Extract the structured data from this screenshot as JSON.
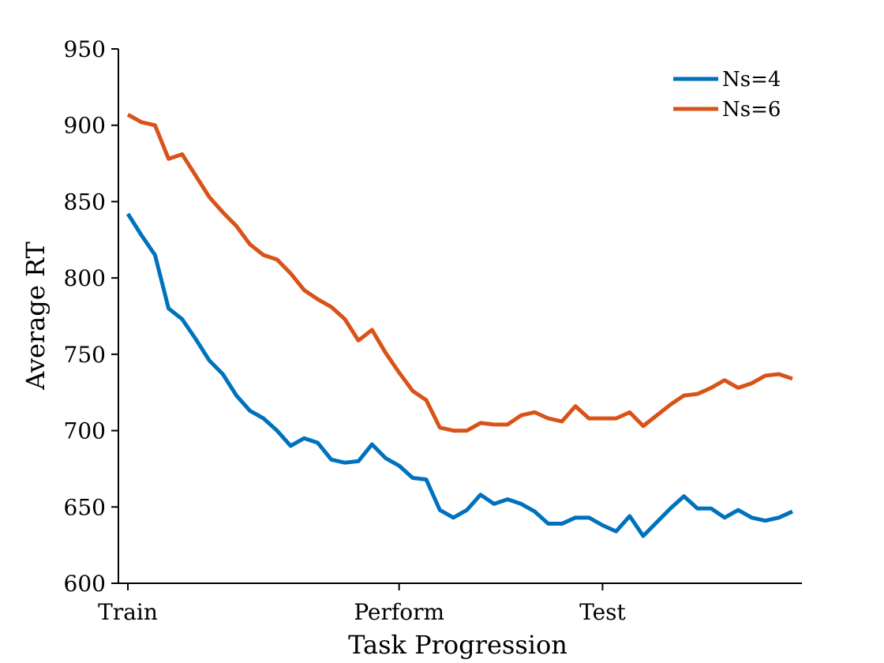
{
  "chart_data": {
    "type": "line",
    "title": "",
    "xlabel": "Task Progression",
    "ylabel": "Average RT",
    "ylim": [
      600,
      950
    ],
    "yticks": [
      600,
      650,
      700,
      750,
      800,
      850,
      900,
      950
    ],
    "x_tick_labels": [
      {
        "x": 0,
        "label": "Train"
      },
      {
        "x": 20,
        "label": "Perform"
      },
      {
        "x": 35,
        "label": "Test"
      }
    ],
    "xlim": [
      -0.7,
      49.7
    ],
    "grid": false,
    "legend_position": "top-right",
    "x": [
      0,
      1,
      2,
      3,
      4,
      5,
      6,
      7,
      8,
      9,
      10,
      11,
      12,
      13,
      14,
      15,
      16,
      17,
      18,
      19,
      20,
      21,
      22,
      23,
      24,
      25,
      26,
      27,
      28,
      29,
      30,
      31,
      32,
      33,
      34,
      35,
      36,
      37,
      38,
      39,
      40,
      41,
      42,
      43,
      44,
      45,
      46,
      47,
      48,
      49
    ],
    "series": [
      {
        "name": "Ns=4",
        "color": "#0072BD",
        "values": [
          842,
          828,
          815,
          780,
          773,
          760,
          746,
          737,
          723,
          713,
          708,
          700,
          690,
          695,
          692,
          681,
          679,
          680,
          691,
          682,
          677,
          669,
          668,
          648,
          643,
          648,
          658,
          652,
          655,
          652,
          647,
          639,
          639,
          643,
          643,
          638,
          634,
          644,
          631,
          640,
          649,
          657,
          649,
          649,
          643,
          648,
          643,
          641,
          643,
          647
        ]
      },
      {
        "name": "Ns=6",
        "color": "#D95319",
        "values": [
          907,
          902,
          900,
          878,
          881,
          867,
          853,
          843,
          834,
          822,
          815,
          812,
          803,
          792,
          786,
          781,
          773,
          759,
          766,
          751,
          738,
          726,
          720,
          702,
          700,
          700,
          705,
          704,
          704,
          710,
          712,
          708,
          706,
          716,
          708,
          708,
          708,
          712,
          703,
          710,
          717,
          723,
          724,
          728,
          733,
          728,
          731,
          736,
          737,
          734
        ]
      }
    ]
  }
}
